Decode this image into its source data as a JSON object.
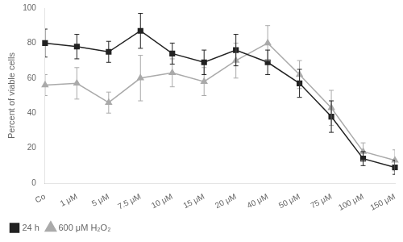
{
  "chart_data": {
    "type": "line",
    "categories": [
      "Co",
      "1 μM",
      "5 μM",
      "7.5 μM",
      "10 μM",
      "15 μM",
      "20 μM",
      "40 μM",
      "50 μM",
      "75 μM",
      "100 μM",
      "150 μM"
    ],
    "series": [
      {
        "name": "600 μM H₂O₂",
        "color": "#aaaaaa",
        "marker": "triangle",
        "values": [
          56,
          57,
          46,
          60,
          63,
          58,
          70,
          80,
          62,
          43,
          18,
          13
        ],
        "errors": [
          6,
          9,
          6,
          13,
          8,
          8,
          10,
          10,
          8,
          10,
          5,
          6
        ]
      },
      {
        "name": "24 h",
        "color": "#222222",
        "marker": "square",
        "values": [
          80,
          78,
          75,
          87,
          74,
          69,
          76,
          69,
          57,
          38,
          14,
          9
        ],
        "errors": [
          8,
          7,
          6,
          10,
          6,
          7,
          9,
          7,
          8,
          9,
          4,
          4
        ]
      }
    ],
    "ylabel": "Percent of viable cells",
    "ylim": [
      0,
      100
    ],
    "yticks": [
      0,
      20,
      40,
      60,
      80,
      100
    ],
    "legend": "lower left",
    "grid": false
  }
}
